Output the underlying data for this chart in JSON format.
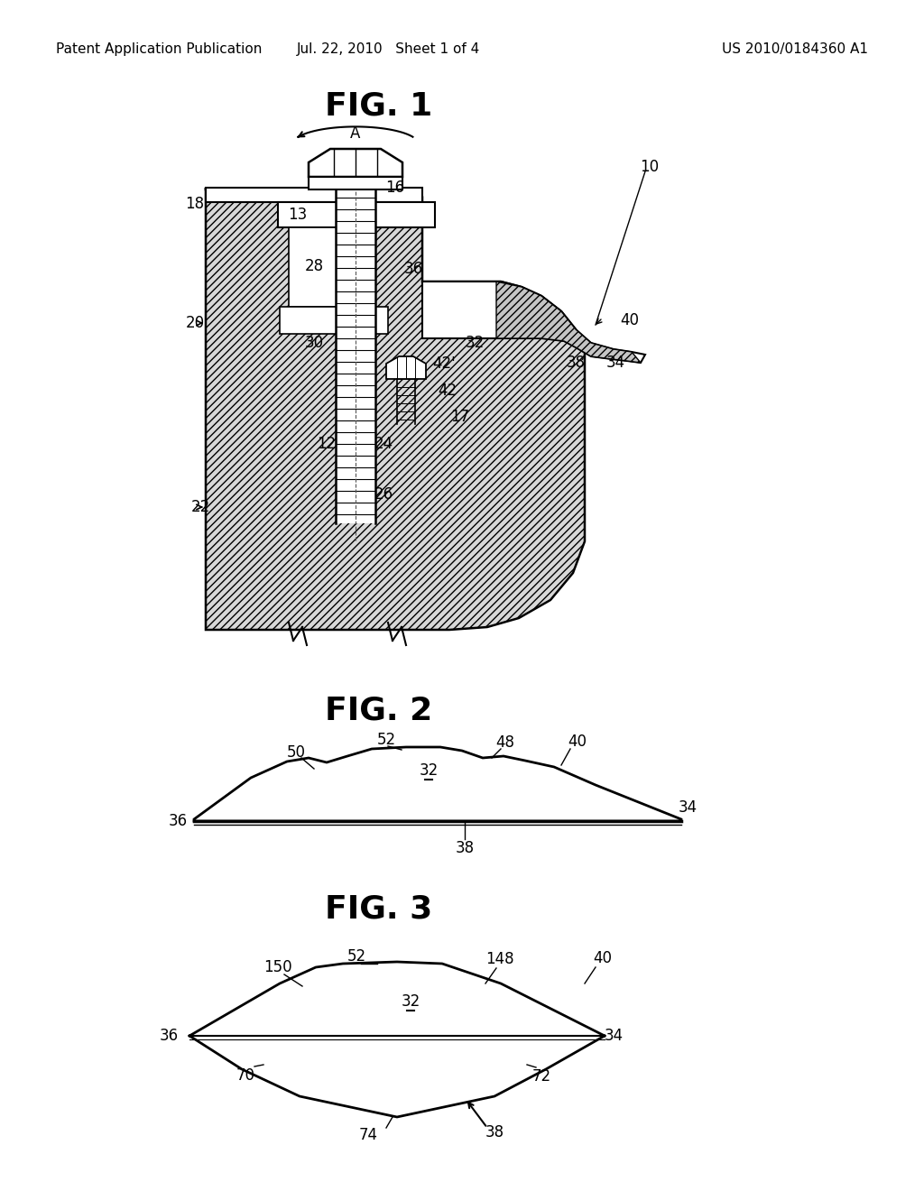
{
  "bg_color": "#ffffff",
  "lc": "#000000",
  "header_left": "Patent Application Publication",
  "header_center": "Jul. 22, 2010   Sheet 1 of 4",
  "header_right": "US 2010/0184360 A1",
  "fig1_title": "FIG. 1",
  "fig2_title": "FIG. 2",
  "fig3_title": "FIG. 3",
  "hatch_color": "#000000",
  "hatch_bg": "#d8d8d8",
  "label_fs": 12,
  "title_fs": 26,
  "header_fs": 11
}
